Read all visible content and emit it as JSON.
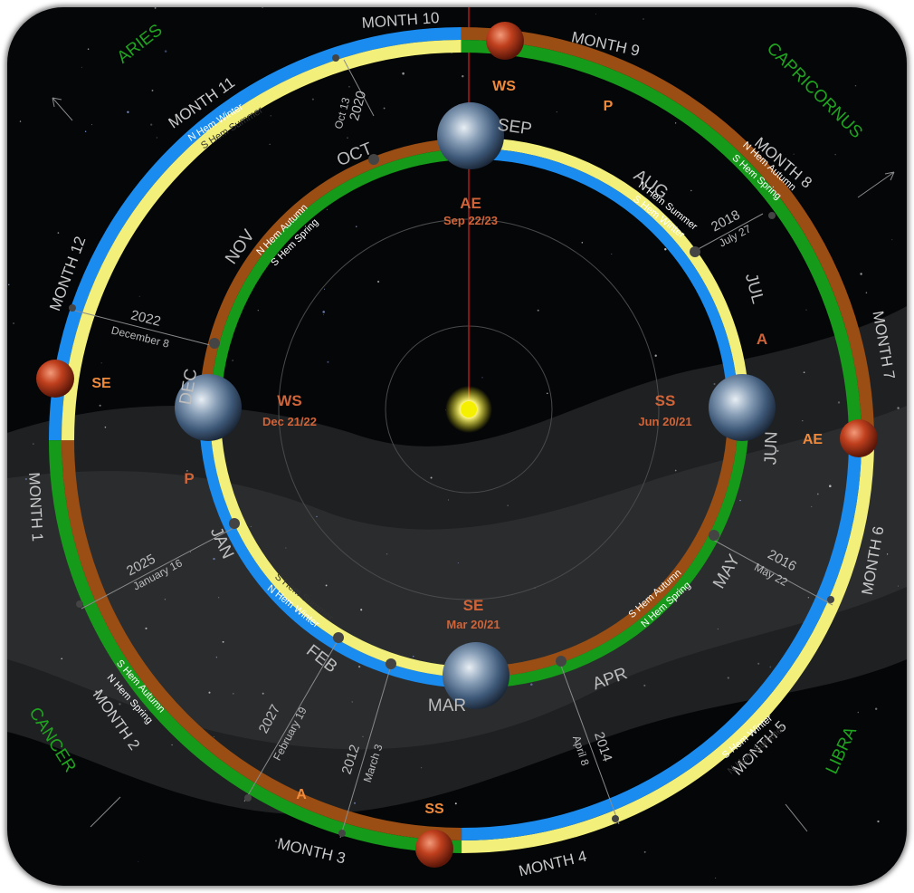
{
  "zodiac": [
    "ARIES",
    "CAPRICORNUS",
    "CANCER",
    "LIBRA"
  ],
  "outer_months": [
    "MONTH 1",
    "MONTH 2",
    "MONTH 3",
    "MONTH 4",
    "MONTH 5",
    "MONTH 6",
    "MONTH 7",
    "MONTH 8",
    "MONTH 9",
    "MONTH 10",
    "MONTH 11",
    "MONTH 12"
  ],
  "inner_months": [
    "JAN",
    "FEB",
    "MAR",
    "APR",
    "MAY",
    "JUN",
    "JUL",
    "AUG",
    "SEP",
    "OCT",
    "NOV",
    "DEC"
  ],
  "outer_events": {
    "ws": "WS",
    "ae": "AE",
    "ss": "SS",
    "se": "SE",
    "p": "P",
    "a": "A"
  },
  "inner_events": {
    "ae": {
      "code": "AE",
      "date": "Sep 22/23"
    },
    "ws": {
      "code": "WS",
      "date": "Dec 21/22"
    },
    "ss": {
      "code": "SS",
      "date": "Jun 20/21"
    },
    "se": {
      "code": "SE",
      "date": "Mar 20/21"
    },
    "p": "P",
    "a": "A"
  },
  "outer_seasons": {
    "n_winter": "N Hem  Winter",
    "s_summer": "S Hem  Summer",
    "n_autumn": "N Hem  Autumn",
    "s_spring": "S Hem  Spring",
    "s_winter": "S Hem  Winter",
    "n_summer": "N Hem  Summer",
    "s_autumn": "S Hem  Autumn",
    "n_spring": "N Hem  Spring"
  },
  "inner_seasons": {
    "n_autumn": "N Hem  Autumn",
    "s_spring": "S Hem  Spring",
    "n_summer": "N Hem  Summer",
    "s_winter": "S Hem  Winter",
    "s_summer": "S Hem  Summer",
    "n_winter": "N Hem  Winter",
    "s_autumn": "S Hem  Autumn",
    "n_spring": "N Hem  Spring"
  },
  "dates": [
    {
      "year": "2020",
      "date": "Oct 13"
    },
    {
      "year": "2018",
      "date": "July 27"
    },
    {
      "year": "2022",
      "date": "December 8"
    },
    {
      "year": "2016",
      "date": "May 22"
    },
    {
      "year": "2025",
      "date": "January 16"
    },
    {
      "year": "2027",
      "date": "February 19"
    },
    {
      "year": "2012",
      "date": "March 3"
    },
    {
      "year": "2014",
      "date": "April 8"
    }
  ],
  "colors": {
    "blue": "#1a8cf0",
    "yellow": "#f2f07a",
    "green": "#169a1a",
    "brown": "#9a4e14",
    "event": "#f08a3a",
    "zodiac": "#1fa51f",
    "month": "#c9c9c9",
    "date": "#bdbdbd",
    "sun": "#f5f000"
  }
}
